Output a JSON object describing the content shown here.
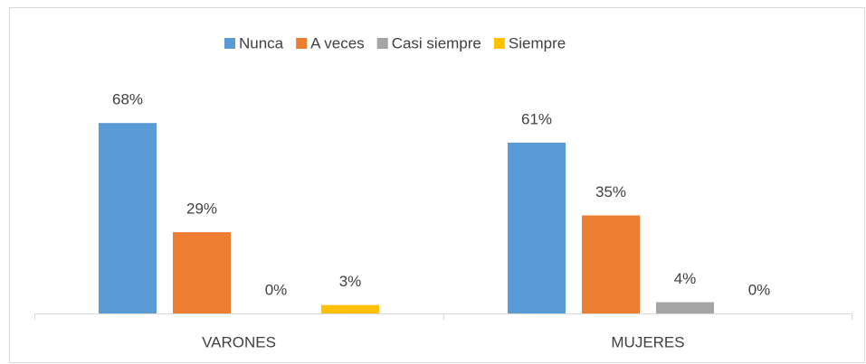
{
  "chart_data": {
    "type": "bar",
    "categories": [
      "VARONES",
      "MUJERES"
    ],
    "series": [
      {
        "name": "Nunca",
        "color": "#5b9bd5",
        "values": [
          68,
          61
        ],
        "value_labels": [
          "68%",
          "61%"
        ]
      },
      {
        "name": "A veces",
        "color": "#ed7d31",
        "values": [
          29,
          35
        ],
        "value_labels": [
          "29%",
          "35%"
        ]
      },
      {
        "name": "Casi siempre",
        "color": "#a5a5a5",
        "values": [
          0,
          4
        ],
        "value_labels": [
          "0%",
          "4%"
        ]
      },
      {
        "name": "Siempre",
        "color": "#ffc000",
        "values": [
          3,
          0
        ],
        "value_labels": [
          "3%",
          "0%"
        ]
      }
    ],
    "legend": "top"
  }
}
